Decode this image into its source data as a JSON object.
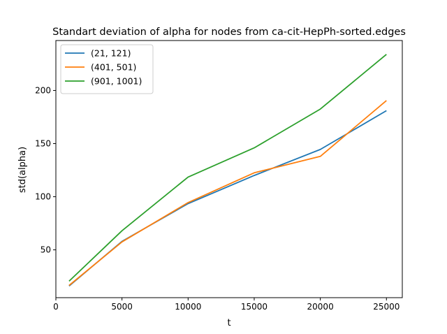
{
  "chart_data": {
    "type": "line",
    "title": "Standart deviation of alpha for nodes from ca-cit-HepPh-sorted.edges",
    "xlabel": "t",
    "ylabel": "std(alpha)",
    "x": [
      1000,
      5000,
      10000,
      15000,
      20000,
      25000
    ],
    "xlim": [
      0,
      26200
    ],
    "ylim": [
      5,
      247
    ],
    "xticks": [
      0,
      5000,
      10000,
      15000,
      20000,
      25000
    ],
    "yticks": [
      50,
      100,
      150,
      200
    ],
    "grid": false,
    "legend_position": "upper-left",
    "series": [
      {
        "name": "(21, 121)",
        "color": "#1f77b4",
        "values": [
          16,
          58,
          93.5,
          120,
          144.5,
          181
        ]
      },
      {
        "name": "(401, 501)",
        "color": "#ff7f0e",
        "values": [
          16.5,
          57.5,
          94.5,
          122.5,
          138,
          190.5
        ]
      },
      {
        "name": "(901, 1001)",
        "color": "#2ca02c",
        "values": [
          20.5,
          68,
          118.5,
          146,
          182.5,
          234
        ]
      }
    ]
  }
}
